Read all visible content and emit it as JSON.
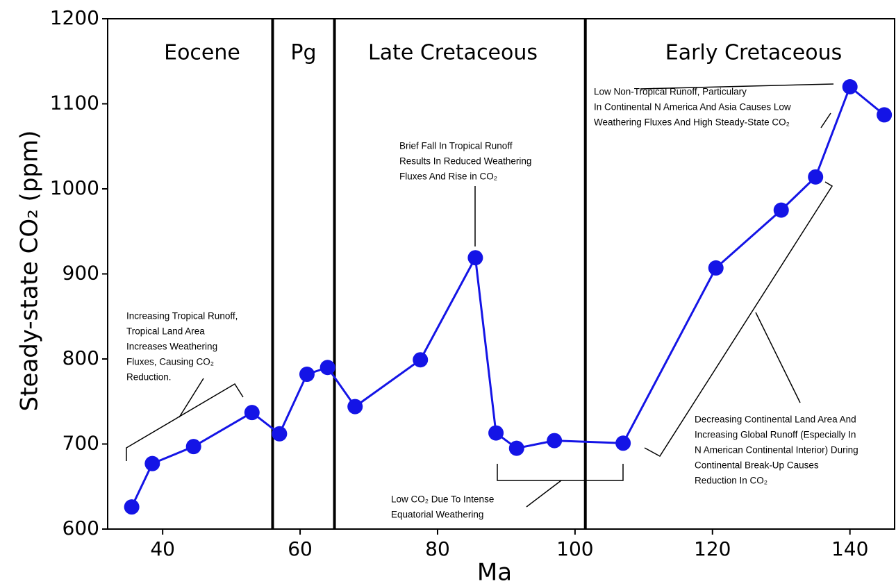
{
  "chart_data": {
    "type": "line",
    "x_label": "Ma",
    "y_label": "Steady-state CO₂ (ppm)",
    "xlim": [
      32,
      146.5
    ],
    "ylim": [
      600,
      1200
    ],
    "xticks": [
      40,
      60,
      80,
      100,
      120,
      140
    ],
    "yticks": [
      600,
      700,
      800,
      900,
      1000,
      1100,
      1200
    ],
    "period_boundaries": [
      56,
      65,
      101.5
    ],
    "periods": [
      "Eocene",
      "Pg",
      "Late Cretaceous",
      "Early Cretaceous"
    ],
    "series": [
      {
        "color": "#1414e6",
        "x": [
          35.5,
          38.5,
          44.5,
          53,
          57,
          61,
          64,
          68,
          77.5,
          85.5,
          88.5,
          91.5,
          97,
          107,
          120.5,
          130,
          135,
          140,
          145
        ],
        "values": [
          626,
          677,
          697,
          737,
          712,
          782,
          790,
          744,
          799,
          919,
          713,
          695,
          704,
          701,
          907,
          975,
          1014,
          1120,
          1087
        ]
      }
    ],
    "annotations": [
      {
        "lines": [
          "Increasing Tropical Runoff,",
          "Tropical Land Area",
          "Increases Weathering",
          "Fluxes, Causing CO₂",
          "Reduction."
        ]
      },
      {
        "lines": [
          "Brief Fall In Tropical Runoff",
          "Results In Reduced Weathering",
          "Fluxes And Rise in CO₂"
        ]
      },
      {
        "lines": [
          "Low Non-Tropical Runoff, Particulary",
          "In Continental N America And Asia Causes Low",
          "Weathering Fluxes And High Steady-State CO₂"
        ]
      },
      {
        "lines": [
          "Low CO₂ Due To Intense",
          "Equatorial Weathering"
        ]
      },
      {
        "lines": [
          "Decreasing Continental Land Area And",
          "Increasing Global Runoff (Especially In",
          "N American Continental Interior) During",
          "Continental Break-Up Causes",
          "Reduction In CO₂"
        ]
      }
    ]
  }
}
